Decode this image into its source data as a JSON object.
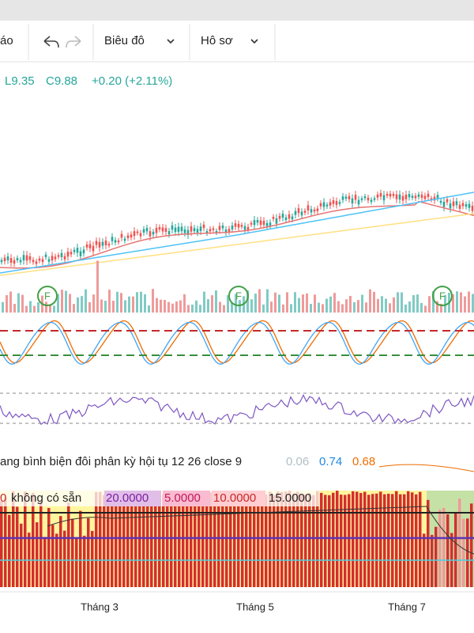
{
  "toolbar": {
    "items": [
      "áo",
      "Biêu đô",
      "Hô sơ"
    ]
  },
  "legend": {
    "low": "L9.35",
    "close": "C9.88",
    "change": "+0.20 (+2.11%)"
  },
  "markers": [
    "F",
    "F",
    "F"
  ],
  "macd": {
    "label": "ang bình biện đôi phân kỳ hội tụ 12 26 close 9",
    "values": [
      "0.06",
      "0.74",
      "0.68"
    ]
  },
  "indicator": {
    "labels": [
      "0",
      "không có sẵn",
      "20.0000",
      "5.0000",
      "10.0000",
      "15.0000"
    ]
  },
  "xaxis": [
    "Tháng 3",
    "Tháng 5",
    "Tháng 7"
  ]
}
